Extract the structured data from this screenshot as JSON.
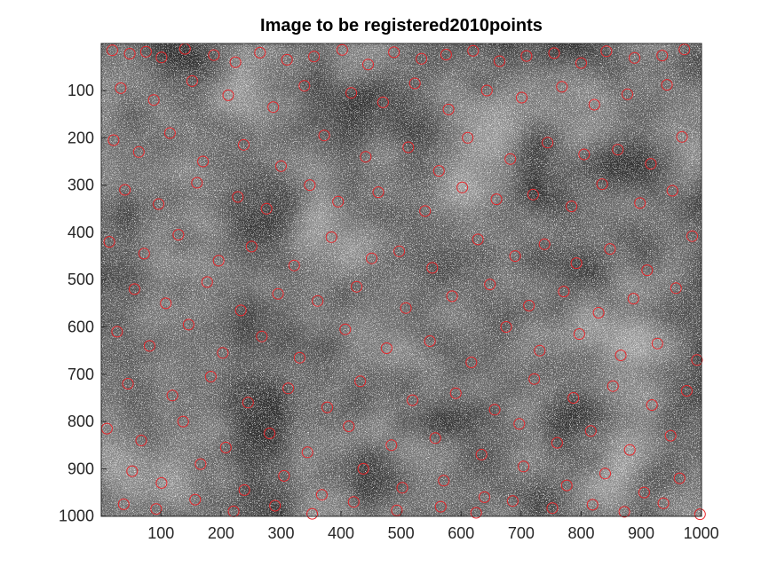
{
  "chart_data": {
    "type": "scatter",
    "title": "Image to be registered2010points",
    "xlabel": "",
    "ylabel": "",
    "xlim": [
      0.5,
      1000.5
    ],
    "ylim": [
      0.5,
      1000.5
    ],
    "y_reversed": true,
    "background": "noise-grayscale-image",
    "marker": "circle",
    "marker_color": "#e8262a",
    "point_count": 2010,
    "x_ticks": [
      100,
      200,
      300,
      400,
      500,
      600,
      700,
      800,
      900,
      1000
    ],
    "y_ticks": [
      100,
      200,
      300,
      400,
      500,
      600,
      700,
      800,
      900,
      1000
    ],
    "points_x": [
      19,
      48,
      75,
      101,
      140,
      188,
      224,
      265,
      310,
      355,
      402,
      445,
      488,
      534,
      575,
      620,
      664,
      709,
      755,
      800,
      842,
      889,
      935,
      972,
      33,
      88,
      152,
      212,
      287,
      339,
      417,
      470,
      523,
      579,
      643,
      701,
      768,
      822,
      877,
      943,
      21,
      63,
      115,
      170,
      238,
      300,
      372,
      441,
      512,
      563,
      611,
      682,
      744,
      805,
      861,
      916,
      968,
      40,
      96,
      160,
      228,
      276,
      348,
      395,
      462,
      540,
      602,
      659,
      720,
      784,
      835,
      898,
      952,
      14,
      72,
      129,
      196,
      251,
      322,
      384,
      451,
      497,
      552,
      628,
      690,
      739,
      792,
      848,
      910,
      985,
      56,
      108,
      177,
      233,
      295,
      361,
      426,
      508,
      585,
      648,
      713,
      771,
      829,
      887,
      958,
      27,
      81,
      146,
      203,
      268,
      331,
      407,
      476,
      548,
      617,
      675,
      731,
      797,
      866,
      927,
      993,
      45,
      119,
      183,
      245,
      312,
      377,
      432,
      519,
      591,
      656,
      722,
      787,
      853,
      918,
      976,
      10,
      67,
      137,
      208,
      281,
      344,
      413,
      484,
      557,
      634,
      697,
      760,
      816,
      881,
      949,
      52,
      101,
      166,
      239,
      305,
      368,
      437,
      502,
      571,
      639,
      704,
      776,
      840,
      905,
      964,
      38,
      92,
      157,
      221,
      290,
      352,
      421,
      493,
      566,
      625,
      686,
      752,
      819,
      872,
      937,
      998
    ],
    "points_y": [
      15,
      22,
      18,
      30,
      12,
      25,
      40,
      20,
      35,
      28,
      14,
      45,
      19,
      33,
      24,
      16,
      38,
      27,
      21,
      42,
      17,
      31,
      26,
      13,
      95,
      120,
      80,
      110,
      135,
      90,
      105,
      125,
      85,
      140,
      100,
      115,
      92,
      130,
      108,
      88,
      205,
      230,
      190,
      250,
      215,
      260,
      195,
      240,
      220,
      270,
      200,
      245,
      210,
      235,
      225,
      255,
      198,
      310,
      340,
      295,
      325,
      350,
      300,
      335,
      315,
      355,
      305,
      330,
      320,
      345,
      298,
      338,
      312,
      420,
      445,
      405,
      460,
      430,
      470,
      410,
      455,
      440,
      475,
      415,
      450,
      425,
      465,
      435,
      480,
      408,
      520,
      550,
      505,
      565,
      530,
      545,
      515,
      560,
      535,
      510,
      555,
      525,
      570,
      540,
      518,
      610,
      640,
      595,
      655,
      620,
      665,
      605,
      645,
      630,
      675,
      600,
      650,
      615,
      660,
      635,
      670,
      720,
      745,
      705,
      760,
      730,
      770,
      715,
      755,
      740,
      775,
      710,
      750,
      725,
      765,
      735,
      815,
      840,
      800,
      855,
      825,
      865,
      810,
      850,
      835,
      870,
      805,
      845,
      820,
      860,
      830,
      905,
      930,
      890,
      945,
      915,
      955,
      900,
      940,
      925,
      960,
      895,
      935,
      910,
      950,
      920,
      975,
      985,
      965,
      990,
      978,
      995,
      970,
      988,
      980,
      993,
      968,
      983,
      976,
      991,
      973,
      996
    ]
  }
}
